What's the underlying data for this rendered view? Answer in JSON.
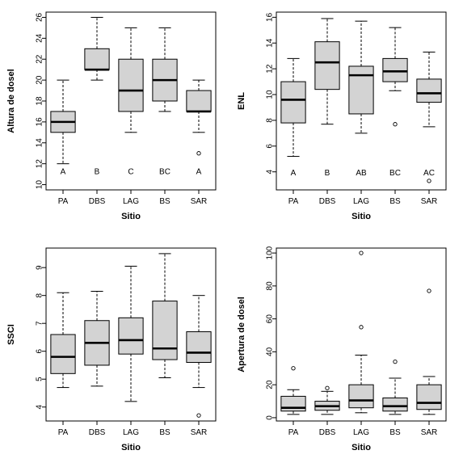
{
  "colors": {
    "box_fill": "#d3d3d3",
    "stroke": "#000000",
    "background": "#ffffff"
  },
  "chart_data": [
    {
      "type": "boxplot",
      "xlabel": "Sitio",
      "ylabel": "Altura de dosel",
      "categories": [
        "PA",
        "DBS",
        "LAG",
        "BS",
        "SAR"
      ],
      "yticks": [
        10,
        12,
        14,
        16,
        18,
        20,
        22,
        24,
        26
      ],
      "ylim": [
        9.5,
        26.5
      ],
      "grid": false,
      "boxes": [
        {
          "whisker_low": 12,
          "q1": 15,
          "median": 16,
          "q3": 17,
          "whisker_high": 20,
          "outliers": []
        },
        {
          "whisker_low": 20,
          "q1": 21,
          "median": 21,
          "q3": 23,
          "whisker_high": 26,
          "outliers": []
        },
        {
          "whisker_low": 15,
          "q1": 17,
          "median": 19,
          "q3": 22,
          "whisker_high": 25,
          "outliers": []
        },
        {
          "whisker_low": 17,
          "q1": 18,
          "median": 20,
          "q3": 22,
          "whisker_high": 25,
          "outliers": []
        },
        {
          "whisker_low": 15,
          "q1": 17,
          "median": 17,
          "q3": 19,
          "whisker_high": 20,
          "outliers": [
            13
          ]
        }
      ],
      "letters": [
        "A",
        "B",
        "C",
        "BC",
        "A"
      ],
      "letter_y": 11.2
    },
    {
      "type": "boxplot",
      "xlabel": "Sitio",
      "ylabel": "ENL",
      "categories": [
        "PA",
        "DBS",
        "LAG",
        "BS",
        "SAR"
      ],
      "yticks": [
        4,
        6,
        8,
        10,
        12,
        14,
        16
      ],
      "ylim": [
        2.6,
        16.4
      ],
      "grid": false,
      "boxes": [
        {
          "whisker_low": 5.2,
          "q1": 7.8,
          "median": 9.6,
          "q3": 11.0,
          "whisker_high": 12.8,
          "outliers": []
        },
        {
          "whisker_low": 7.7,
          "q1": 10.4,
          "median": 12.5,
          "q3": 14.1,
          "whisker_high": 15.9,
          "outliers": []
        },
        {
          "whisker_low": 7.0,
          "q1": 8.5,
          "median": 11.5,
          "q3": 12.2,
          "whisker_high": 15.7,
          "outliers": []
        },
        {
          "whisker_low": 10.3,
          "q1": 11.0,
          "median": 11.8,
          "q3": 12.8,
          "whisker_high": 15.2,
          "outliers": [
            7.7
          ]
        },
        {
          "whisker_low": 7.5,
          "q1": 9.4,
          "median": 10.1,
          "q3": 11.2,
          "whisker_high": 13.3,
          "outliers": [
            3.3
          ]
        }
      ],
      "letters": [
        "A",
        "B",
        "AB",
        "BC",
        "AC"
      ],
      "letter_y": 3.9
    },
    {
      "type": "boxplot",
      "xlabel": "Sitio",
      "ylabel": "SSCI",
      "categories": [
        "PA",
        "DBS",
        "LAG",
        "BS",
        "SAR"
      ],
      "yticks": [
        4,
        5,
        6,
        7,
        8,
        9
      ],
      "ylim": [
        3.5,
        9.7
      ],
      "grid": false,
      "boxes": [
        {
          "whisker_low": 4.7,
          "q1": 5.2,
          "median": 5.8,
          "q3": 6.6,
          "whisker_high": 8.1,
          "outliers": []
        },
        {
          "whisker_low": 4.75,
          "q1": 5.5,
          "median": 6.3,
          "q3": 7.1,
          "whisker_high": 8.15,
          "outliers": []
        },
        {
          "whisker_low": 4.2,
          "q1": 5.9,
          "median": 6.4,
          "q3": 7.2,
          "whisker_high": 9.05,
          "outliers": []
        },
        {
          "whisker_low": 5.05,
          "q1": 5.7,
          "median": 6.1,
          "q3": 7.8,
          "whisker_high": 9.5,
          "outliers": []
        },
        {
          "whisker_low": 4.7,
          "q1": 5.6,
          "median": 5.95,
          "q3": 6.7,
          "whisker_high": 8.0,
          "outliers": [
            3.7
          ]
        }
      ],
      "letters": [],
      "letter_y": null
    },
    {
      "type": "boxplot",
      "xlabel": "Sitio",
      "ylabel": "Apertura de dosel",
      "categories": [
        "PA",
        "DBS",
        "LAG",
        "BS",
        "SAR"
      ],
      "yticks": [
        0,
        20,
        40,
        60,
        80,
        100
      ],
      "ylim": [
        -2,
        103
      ],
      "grid": false,
      "boxes": [
        {
          "whisker_low": 2,
          "q1": 4,
          "median": 6,
          "q3": 13,
          "whisker_high": 17,
          "outliers": [
            30
          ]
        },
        {
          "whisker_low": 2,
          "q1": 4.5,
          "median": 7,
          "q3": 10,
          "whisker_high": 16,
          "outliers": [
            18
          ]
        },
        {
          "whisker_low": 3,
          "q1": 6,
          "median": 10.5,
          "q3": 20,
          "whisker_high": 38,
          "outliers": [
            55,
            100
          ]
        },
        {
          "whisker_low": 2,
          "q1": 4,
          "median": 7,
          "q3": 12,
          "whisker_high": 24,
          "outliers": [
            34
          ]
        },
        {
          "whisker_low": 2,
          "q1": 5,
          "median": 9,
          "q3": 20,
          "whisker_high": 25,
          "outliers": [
            77
          ]
        }
      ],
      "letters": [],
      "letter_y": null
    }
  ]
}
